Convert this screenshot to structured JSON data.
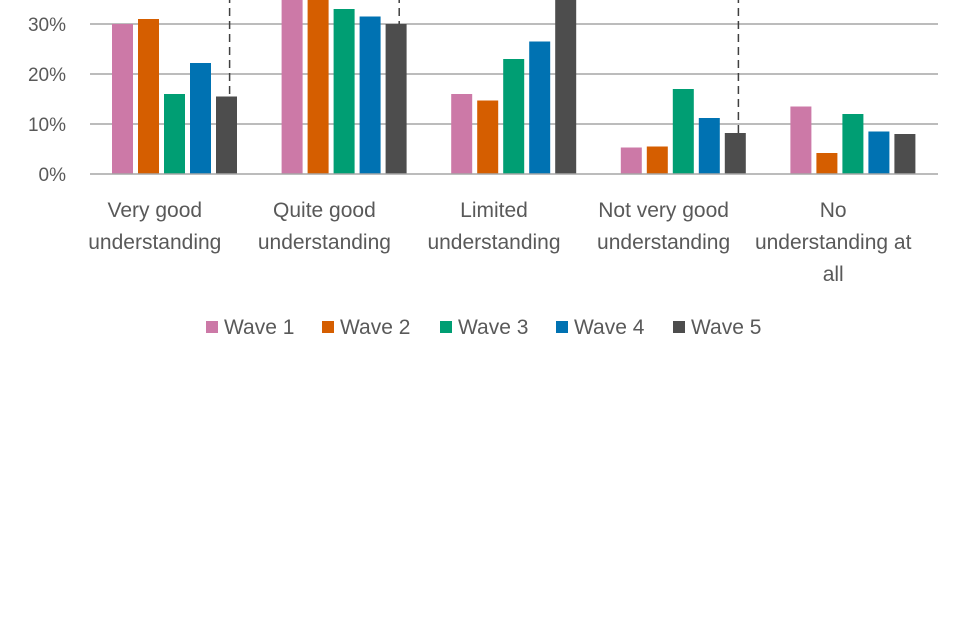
{
  "chart_data": {
    "type": "bar",
    "title": "",
    "xlabel": "",
    "ylabel": "",
    "y_ticks": [
      "0%",
      "10%",
      "20%",
      "30%"
    ],
    "ylim": [
      0,
      35
    ],
    "y_unit": "%",
    "grid": true,
    "legend_position": "bottom",
    "categories": [
      [
        "Very good",
        "understanding"
      ],
      [
        "Quite good",
        "understanding"
      ],
      [
        "Limited",
        "understanding"
      ],
      [
        "Not very good",
        "understanding"
      ],
      [
        "No",
        "understanding at",
        "all"
      ]
    ],
    "series": [
      {
        "name": "Wave 1",
        "color": "#CC79A7",
        "values": [
          30,
          36,
          16,
          5.3,
          13.5
        ]
      },
      {
        "name": "Wave 2",
        "color": "#D55E00",
        "values": [
          31,
          36,
          14.7,
          5.5,
          4.2
        ]
      },
      {
        "name": "Wave 3",
        "color": "#009E73",
        "values": [
          16,
          33,
          23,
          17,
          12
        ]
      },
      {
        "name": "Wave 4",
        "color": "#0072B2",
        "values": [
          22.2,
          31.5,
          26.5,
          11.2,
          8.5
        ]
      },
      {
        "name": "Wave 5",
        "color": "#4D4D4D",
        "values": [
          15.5,
          30,
          36,
          8.2,
          8
        ]
      }
    ]
  }
}
